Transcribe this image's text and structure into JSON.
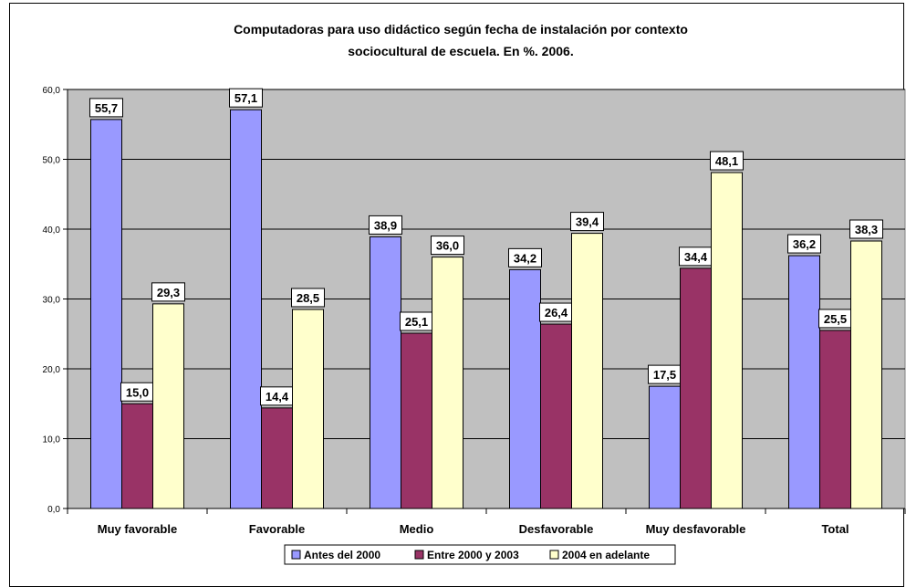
{
  "chart_data": {
    "type": "bar",
    "title": "Computadoras para uso didáctico según fecha de instalación por contexto sociocultural de escuela. En %. 2006.",
    "title_lines": [
      "Computadoras para uso didáctico según fecha de instalación por contexto",
      "sociocultural de escuela. En %. 2006."
    ],
    "categories": [
      "Muy favorable",
      "Favorable",
      "Medio",
      "Desfavorable",
      "Muy desfavorable",
      "Total"
    ],
    "series": [
      {
        "name": "Antes del 2000",
        "values": [
          55.7,
          57.1,
          38.9,
          34.2,
          17.5,
          36.2
        ],
        "color": "#9999ff"
      },
      {
        "name": "Entre 2000 y 2003",
        "values": [
          15.0,
          14.4,
          25.1,
          26.4,
          34.4,
          25.5
        ],
        "color": "#993366"
      },
      {
        "name": "2004 en adelante",
        "values": [
          29.3,
          28.5,
          36.0,
          39.4,
          48.1,
          38.3
        ],
        "color": "#ffffcc"
      }
    ],
    "data_labels": [
      [
        "55,7",
        "57,1",
        "38,9",
        "34,2",
        "17,5",
        "36,2"
      ],
      [
        "15,0",
        "14,4",
        "25,1",
        "26,4",
        "34,4",
        "25,5"
      ],
      [
        "29,3",
        "28,5",
        "36,0",
        "39,4",
        "48,1",
        "38,3"
      ]
    ],
    "y_ticks": [
      "0,0",
      "10,0",
      "20,0",
      "30,0",
      "40,0",
      "50,0",
      "60,0"
    ],
    "ylim": [
      0,
      60
    ],
    "grid": true,
    "plot_background": "#c0c0c0",
    "legend_position": "bottom",
    "xlabel": "",
    "ylabel": ""
  }
}
